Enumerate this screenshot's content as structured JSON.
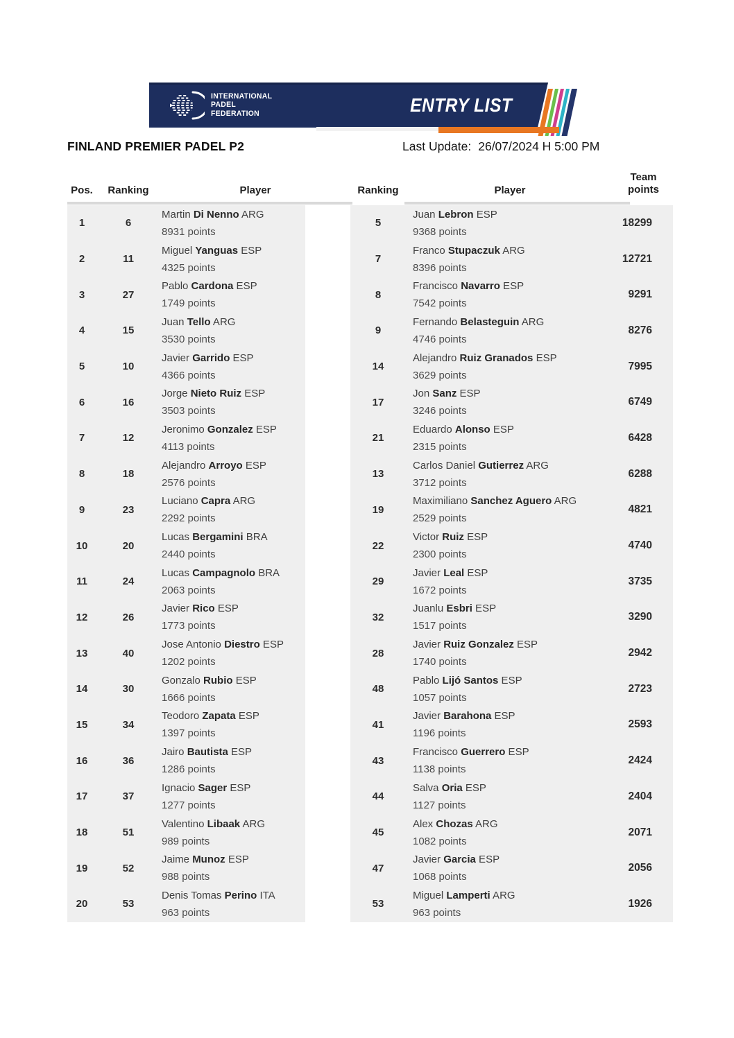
{
  "banner": {
    "logo_lines": [
      "INTERNATIONAL",
      "PADEL",
      "FEDERATION"
    ],
    "entry_list_label": "ENTRY LIST",
    "colors": {
      "navy": "#1d2e5e",
      "orange": "#e87722",
      "green": "#6abf4b",
      "magenta": "#cf3f8d",
      "cyan": "#2db3c7"
    }
  },
  "header": {
    "title": "FINLAND PREMIER PADEL P2",
    "last_update_label": "Last Update:",
    "last_update_value": "26/07/2024 H 5:00 PM"
  },
  "table": {
    "columns": [
      "Pos.",
      "Ranking",
      "Player",
      "Ranking",
      "Player",
      "Team points"
    ],
    "rows": [
      {
        "pos": "1",
        "r1": "6",
        "p1": {
          "first": "Martin",
          "last": "Di Nenno",
          "country": "ARG",
          "points": "8931 points"
        },
        "r2": "5",
        "p2": {
          "first": "Juan",
          "last": "Lebron",
          "country": "ESP",
          "points": "9368 points"
        },
        "team": "18299"
      },
      {
        "pos": "2",
        "r1": "11",
        "p1": {
          "first": "Miguel",
          "last": "Yanguas",
          "country": "ESP",
          "points": "4325 points"
        },
        "r2": "7",
        "p2": {
          "first": "Franco",
          "last": "Stupaczuk",
          "country": "ARG",
          "points": "8396 points"
        },
        "team": "12721"
      },
      {
        "pos": "3",
        "r1": "27",
        "p1": {
          "first": "Pablo",
          "last": "Cardona",
          "country": "ESP",
          "points": "1749 points"
        },
        "r2": "8",
        "p2": {
          "first": "Francisco",
          "last": "Navarro",
          "country": "ESP",
          "points": "7542 points"
        },
        "team": "9291"
      },
      {
        "pos": "4",
        "r1": "15",
        "p1": {
          "first": "Juan",
          "last": "Tello",
          "country": "ARG",
          "points": "3530 points"
        },
        "r2": "9",
        "p2": {
          "first": "Fernando",
          "last": "Belasteguin",
          "country": "ARG",
          "points": "4746 points"
        },
        "team": "8276"
      },
      {
        "pos": "5",
        "r1": "10",
        "p1": {
          "first": "Javier",
          "last": "Garrido",
          "country": "ESP",
          "points": "4366 points"
        },
        "r2": "14",
        "p2": {
          "first": "Alejandro",
          "last": "Ruiz Granados",
          "country": "ESP",
          "points": "3629 points"
        },
        "team": "7995"
      },
      {
        "pos": "6",
        "r1": "16",
        "p1": {
          "first": "Jorge",
          "last": "Nieto Ruiz",
          "country": "ESP",
          "points": "3503 points"
        },
        "r2": "17",
        "p2": {
          "first": "Jon",
          "last": "Sanz",
          "country": "ESP",
          "points": "3246 points"
        },
        "team": "6749"
      },
      {
        "pos": "7",
        "r1": "12",
        "p1": {
          "first": "Jeronimo",
          "last": "Gonzalez",
          "country": "ESP",
          "points": "4113 points"
        },
        "r2": "21",
        "p2": {
          "first": "Eduardo",
          "last": "Alonso",
          "country": "ESP",
          "points": "2315 points"
        },
        "team": "6428"
      },
      {
        "pos": "8",
        "r1": "18",
        "p1": {
          "first": "Alejandro",
          "last": "Arroyo",
          "country": "ESP",
          "points": "2576 points"
        },
        "r2": "13",
        "p2": {
          "first": "Carlos Daniel",
          "last": "Gutierrez",
          "country": "ARG",
          "points": "3712 points"
        },
        "team": "6288"
      },
      {
        "pos": "9",
        "r1": "23",
        "p1": {
          "first": "Luciano",
          "last": "Capra",
          "country": "ARG",
          "points": "2292 points"
        },
        "r2": "19",
        "p2": {
          "first": "Maximiliano",
          "last": "Sanchez Aguero",
          "country": "ARG",
          "points": "2529 points"
        },
        "team": "4821"
      },
      {
        "pos": "10",
        "r1": "20",
        "p1": {
          "first": "Lucas",
          "last": "Bergamini",
          "country": "BRA",
          "points": "2440 points"
        },
        "r2": "22",
        "p2": {
          "first": "Victor",
          "last": "Ruiz",
          "country": "ESP",
          "points": "2300 points"
        },
        "team": "4740"
      },
      {
        "pos": "11",
        "r1": "24",
        "p1": {
          "first": "Lucas",
          "last": "Campagnolo",
          "country": "BRA",
          "points": "2063 points"
        },
        "r2": "29",
        "p2": {
          "first": "Javier",
          "last": "Leal",
          "country": "ESP",
          "points": "1672 points"
        },
        "team": "3735"
      },
      {
        "pos": "12",
        "r1": "26",
        "p1": {
          "first": "Javier",
          "last": "Rico",
          "country": "ESP",
          "points": "1773 points"
        },
        "r2": "32",
        "p2": {
          "first": "Juanlu",
          "last": "Esbri",
          "country": "ESP",
          "points": "1517 points"
        },
        "team": "3290"
      },
      {
        "pos": "13",
        "r1": "40",
        "p1": {
          "first": "Jose Antonio",
          "last": "Diestro",
          "country": "ESP",
          "points": "1202 points"
        },
        "r2": "28",
        "p2": {
          "first": "Javier",
          "last": "Ruiz Gonzalez",
          "country": "ESP",
          "points": "1740 points"
        },
        "team": "2942"
      },
      {
        "pos": "14",
        "r1": "30",
        "p1": {
          "first": "Gonzalo",
          "last": "Rubio",
          "country": "ESP",
          "points": "1666 points"
        },
        "r2": "48",
        "p2": {
          "first": "Pablo",
          "last": "Lijó Santos",
          "country": "ESP",
          "points": "1057 points"
        },
        "team": "2723"
      },
      {
        "pos": "15",
        "r1": "34",
        "p1": {
          "first": "Teodoro",
          "last": "Zapata",
          "country": "ESP",
          "points": "1397 points"
        },
        "r2": "41",
        "p2": {
          "first": "Javier",
          "last": "Barahona",
          "country": "ESP",
          "points": "1196 points"
        },
        "team": "2593"
      },
      {
        "pos": "16",
        "r1": "36",
        "p1": {
          "first": "Jairo",
          "last": "Bautista",
          "country": "ESP",
          "points": "1286 points"
        },
        "r2": "43",
        "p2": {
          "first": "Francisco",
          "last": "Guerrero",
          "country": "ESP",
          "points": "1138 points"
        },
        "team": "2424"
      },
      {
        "pos": "17",
        "r1": "37",
        "p1": {
          "first": "Ignacio",
          "last": "Sager",
          "country": "ESP",
          "points": "1277 points"
        },
        "r2": "44",
        "p2": {
          "first": "Salva",
          "last": "Oria",
          "country": "ESP",
          "points": "1127 points"
        },
        "team": "2404"
      },
      {
        "pos": "18",
        "r1": "51",
        "p1": {
          "first": "Valentino",
          "last": "Libaak",
          "country": "ARG",
          "points": "989 points"
        },
        "r2": "45",
        "p2": {
          "first": "Alex",
          "last": "Chozas",
          "country": "ARG",
          "points": "1082 points"
        },
        "team": "2071"
      },
      {
        "pos": "19",
        "r1": "52",
        "p1": {
          "first": "Jaime",
          "last": "Munoz",
          "country": "ESP",
          "points": "988 points"
        },
        "r2": "47",
        "p2": {
          "first": "Javier",
          "last": "Garcia",
          "country": "ESP",
          "points": "1068 points"
        },
        "team": "2056"
      },
      {
        "pos": "20",
        "r1": "53",
        "p1": {
          "first": "Denis Tomas",
          "last": "Perino",
          "country": "ITA",
          "points": "963 points"
        },
        "r2": "53",
        "p2": {
          "first": "Miguel",
          "last": "Lamperti",
          "country": "ARG",
          "points": "963 points"
        },
        "team": "1926"
      }
    ]
  }
}
